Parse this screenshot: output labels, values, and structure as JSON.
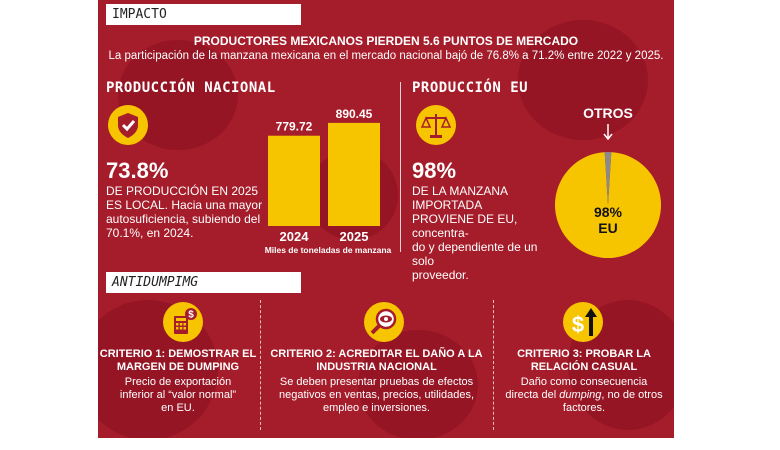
{
  "header": {
    "tag": "IMPACTO",
    "headline": "PRODUCTORES MEXICANOS PIERDEN 5.6 PUNTOS DE MERCADO",
    "subheadline": "La participación de la manzana mexicana en el mercado nacional bajó de 76.8% a 71.2% entre 2022 y 2025."
  },
  "produccion_nacional": {
    "title": "PRODUCCIÓN NACIONAL",
    "big_number": "73.8%",
    "lines": [
      "DE PRODUCCIÓN EN 2025",
      "ES LOCAL. Hacia una mayor",
      "autosuficiencia, subiendo del",
      "70.1%, en 2024."
    ],
    "icon": "shield-check-icon"
  },
  "produccion_eu": {
    "title": "PRODUCCIÓN EU",
    "big_number": "98%",
    "lines": [
      "DE LA MANZANA IMPORTADA",
      "PROVIENE DE EU, concentra-",
      "do y dependiente de un solo",
      "proveedor."
    ],
    "icon": "scales-icon"
  },
  "chart_data": [
    {
      "type": "bar",
      "categories": [
        "2024",
        "2025"
      ],
      "values": [
        779.72,
        890.45
      ],
      "data_labels": [
        "779.72",
        "890.45"
      ],
      "title": "",
      "xlabel": "Miles de toneladas de manzana",
      "ylabel": "",
      "color": "#f7c400"
    },
    {
      "type": "pie",
      "categories": [
        "EU",
        "OTROS"
      ],
      "values": [
        98,
        2
      ],
      "labels": [
        "98%",
        "EU",
        "OTROS"
      ],
      "colors": [
        "#f7c400",
        "#8a8a8a"
      ]
    }
  ],
  "antidumping": {
    "tag": "ANTIDUMPIMG",
    "criteria": [
      {
        "icon": "calculator-dollar-icon",
        "title": [
          "CRITERIO 1: DEMOSTRAR EL",
          "MARGEN DE DUMPING"
        ],
        "body": [
          "Precio de exportación",
          "inferior al “valor normal”",
          "en EU."
        ]
      },
      {
        "icon": "magnifier-eye-icon",
        "title": [
          "CRITERIO 2: ACREDITAR EL DAÑO A LA",
          "INDUSTRIA NACIONAL"
        ],
        "body": [
          "Se deben presentar pruebas de efectos",
          "negativos en ventas, precios, utilidades,",
          "empleo e inversiones."
        ]
      },
      {
        "icon": "dollar-arrow-up-icon",
        "title": [
          "CRITERIO 3: PROBAR LA",
          "RELACIÓN CASUAL"
        ],
        "body_parts": [
          "Daño como consecuencia",
          "directa del ",
          "dumping",
          ", no de otros",
          "factores."
        ]
      }
    ]
  }
}
